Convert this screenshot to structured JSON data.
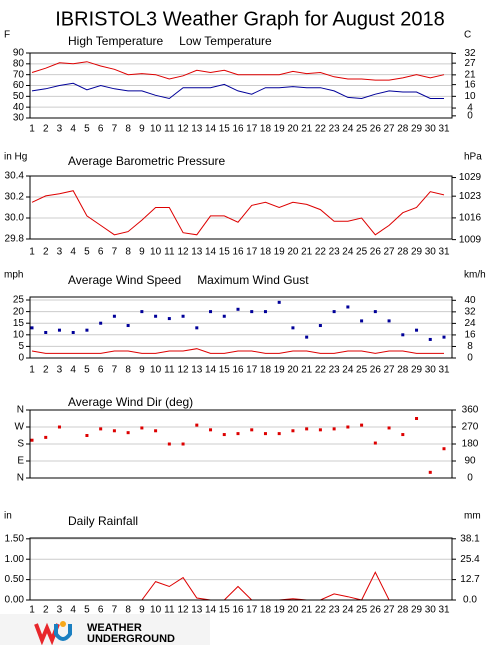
{
  "title": "IBRISTOL3 Weather Graph for August 2018",
  "logo": [
    "WEATHER",
    "UNDERGROUND"
  ],
  "chart_data": [
    {
      "type": "line",
      "y_label": "F",
      "y2_label": "C",
      "categories": [
        1,
        2,
        3,
        4,
        5,
        6,
        7,
        8,
        9,
        10,
        11,
        12,
        13,
        14,
        15,
        16,
        17,
        18,
        19,
        20,
        21,
        22,
        23,
        24,
        25,
        26,
        27,
        28,
        29,
        30,
        31
      ],
      "ylim": [
        30,
        90
      ],
      "yticks": [
        30,
        40,
        50,
        60,
        70,
        80,
        90
      ],
      "y2lim": [
        -1.1,
        32.2
      ],
      "y2ticks": [
        0,
        4,
        10,
        16,
        21,
        27,
        32
      ],
      "grid": true,
      "series": [
        {
          "name": "High Temperature",
          "type": "line",
          "color": "#dd0000",
          "values": [
            72,
            76,
            81,
            80,
            82,
            78,
            75,
            70,
            71,
            70,
            66,
            69,
            74,
            72,
            74,
            70,
            70,
            70,
            70,
            73,
            71,
            72,
            68,
            66,
            66,
            65,
            65,
            67,
            70,
            67,
            70
          ]
        },
        {
          "name": "Low Temperature",
          "type": "line",
          "color": "#000099",
          "values": [
            55,
            57,
            60,
            62,
            56,
            60,
            57,
            55,
            55,
            51,
            48,
            58,
            58,
            58,
            61,
            55,
            52,
            58,
            58,
            59,
            58,
            58,
            55,
            49,
            48,
            52,
            55,
            54,
            54,
            48,
            48
          ]
        }
      ]
    },
    {
      "type": "line",
      "y_label": "in Hg",
      "y2_label": "hPa",
      "categories": [
        1,
        2,
        3,
        4,
        5,
        6,
        7,
        8,
        9,
        10,
        11,
        12,
        13,
        14,
        15,
        16,
        17,
        18,
        19,
        20,
        21,
        22,
        23,
        24,
        25,
        26,
        27,
        28,
        29,
        30,
        31
      ],
      "ylim": [
        29.8,
        30.4
      ],
      "yticks": [
        29.8,
        {
          "value": 30.0,
          "label": "30.0"
        },
        30.2,
        30.4
      ],
      "y2lim": [
        1009.2,
        1029.5
      ],
      "y2ticks": [
        1009,
        1016,
        1023,
        1029
      ],
      "grid": true,
      "series": [
        {
          "name": "Average Barometric Pressure",
          "type": "line",
          "color": "#dd0000",
          "values": [
            30.15,
            30.21,
            30.23,
            30.26,
            30.02,
            29.93,
            29.84,
            29.87,
            29.98,
            30.1,
            30.1,
            29.86,
            29.84,
            30.02,
            30.02,
            29.96,
            30.12,
            30.15,
            30.1,
            30.15,
            30.13,
            30.08,
            29.97,
            29.97,
            30.0,
            29.84,
            29.93,
            30.05,
            30.1,
            30.25,
            30.22
          ]
        }
      ]
    },
    {
      "type": "line",
      "y_label": "mph",
      "y2_label": "km/h",
      "categories": [
        1,
        2,
        3,
        4,
        5,
        6,
        7,
        8,
        9,
        10,
        11,
        12,
        13,
        14,
        15,
        16,
        17,
        18,
        19,
        20,
        21,
        22,
        23,
        24,
        25,
        26,
        27,
        28,
        29,
        30,
        31
      ],
      "ylim": [
        0,
        26.3
      ],
      "yticks": [
        0,
        5,
        10,
        15,
        20,
        25
      ],
      "y2lim": [
        0,
        42.3
      ],
      "y2ticks": [
        0,
        8,
        16,
        24,
        32,
        40
      ],
      "grid": true,
      "series": [
        {
          "name": "Average Wind Speed",
          "type": "line",
          "color": "#dd0000",
          "values": [
            3,
            2,
            2,
            2,
            2,
            2,
            3,
            3,
            2,
            2,
            3,
            3,
            4,
            2,
            2,
            3,
            3,
            2,
            2,
            3,
            3,
            2,
            2,
            3,
            3,
            2,
            3,
            3,
            2,
            2,
            2
          ]
        },
        {
          "name": "Maximum Wind Gust",
          "type": "scatter",
          "color": "#000099",
          "values": [
            13,
            11,
            12,
            11,
            12,
            15,
            18,
            14,
            20,
            18,
            17,
            18,
            13,
            20,
            18,
            21,
            20,
            20,
            24,
            13,
            9,
            14,
            20,
            22,
            16,
            20,
            16,
            10,
            12,
            8,
            9
          ]
        }
      ]
    },
    {
      "type": "line",
      "ylim": [
        0,
        360
      ],
      "yticks": [
        {
          "value": 0,
          "label": "N"
        },
        {
          "value": 90,
          "label": "E"
        },
        {
          "value": 180,
          "label": "S"
        },
        {
          "value": 270,
          "label": "W"
        },
        {
          "value": 360,
          "label": "N"
        }
      ],
      "y2lim": [
        0,
        360
      ],
      "y2ticks": [
        0,
        90,
        180,
        270,
        360
      ],
      "grid": true,
      "series": [
        {
          "name": "Average Wind Dir (deg)",
          "type": "scatter",
          "color": "#dd0000",
          "values": [
            200,
            215,
            270,
            null,
            225,
            260,
            250,
            240,
            265,
            250,
            180,
            180,
            280,
            255,
            230,
            235,
            255,
            235,
            235,
            250,
            260,
            255,
            260,
            270,
            280,
            185,
            265,
            230,
            315,
            30,
            155
          ]
        }
      ]
    },
    {
      "type": "line",
      "y_label": "in",
      "y2_label": "mm",
      "categories": [
        1,
        2,
        3,
        4,
        5,
        6,
        7,
        8,
        9,
        10,
        11,
        12,
        13,
        14,
        15,
        16,
        17,
        18,
        19,
        20,
        21,
        22,
        23,
        24,
        25,
        26,
        27,
        28,
        29,
        30,
        31
      ],
      "ylim": [
        0,
        1.52
      ],
      "yticks": [
        {
          "value": 0,
          "label": "0.00"
        },
        {
          "value": 0.5,
          "label": "0.50"
        },
        {
          "value": 1,
          "label": "1.00"
        },
        {
          "value": 1.5,
          "label": "1.50"
        }
      ],
      "y2lim": [
        0,
        38.6
      ],
      "y2ticks": [
        {
          "value": 0,
          "label": "0.0"
        },
        12.7,
        25.4,
        38.1
      ],
      "grid": true,
      "series": [
        {
          "name": "Daily Rainfall",
          "type": "line",
          "color": "#dd0000",
          "values": [
            0,
            0,
            0,
            0,
            0,
            0,
            0,
            0,
            0,
            0.45,
            0.33,
            0.55,
            0.05,
            0,
            0,
            0.33,
            0,
            0,
            0,
            0.03,
            0,
            0,
            0.15,
            0.08,
            0,
            0.68,
            0,
            0,
            0,
            0,
            0
          ]
        }
      ]
    }
  ]
}
